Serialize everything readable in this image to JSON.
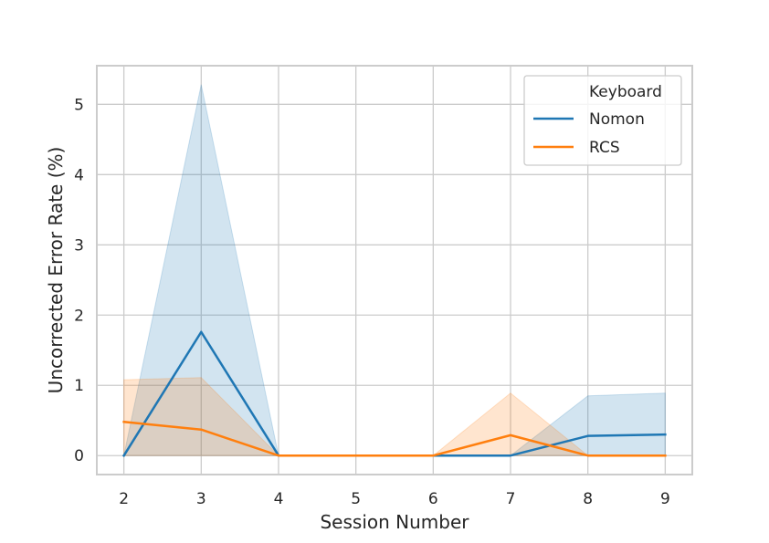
{
  "chart_data": {
    "type": "line",
    "title": "",
    "xlabel": "Session Number",
    "ylabel": "Uncorrected Error Rate (%)",
    "x": [
      2,
      3,
      4,
      5,
      6,
      7,
      8,
      9
    ],
    "xlim": [
      1.65,
      9.35
    ],
    "ylim": [
      -0.27,
      5.55
    ],
    "xticks": [
      2,
      3,
      4,
      5,
      6,
      7,
      8,
      9
    ],
    "yticks": [
      0,
      1,
      2,
      3,
      4,
      5
    ],
    "grid": true,
    "legend": {
      "title": "Keyboard",
      "placement": "top-right"
    },
    "series": [
      {
        "name": "Nomon",
        "color": "#1f77b4",
        "values": [
          0.0,
          1.76,
          0.0,
          0.0,
          0.0,
          0.0,
          0.28,
          0.3
        ],
        "ci_lower": [
          0.0,
          0.0,
          0.0,
          0.0,
          0.0,
          0.0,
          0.0,
          0.0
        ],
        "ci_upper": [
          0.0,
          5.28,
          0.0,
          0.0,
          0.0,
          0.0,
          0.85,
          0.89
        ]
      },
      {
        "name": "RCS",
        "color": "#ff7f0e",
        "values": [
          0.48,
          0.37,
          0.0,
          0.0,
          0.0,
          0.29,
          0.0,
          0.0
        ],
        "ci_lower": [
          0.0,
          0.0,
          0.0,
          0.0,
          0.0,
          0.0,
          0.0,
          0.0
        ],
        "ci_upper": [
          1.08,
          1.11,
          0.0,
          0.0,
          0.0,
          0.89,
          0.0,
          0.0
        ]
      }
    ]
  }
}
